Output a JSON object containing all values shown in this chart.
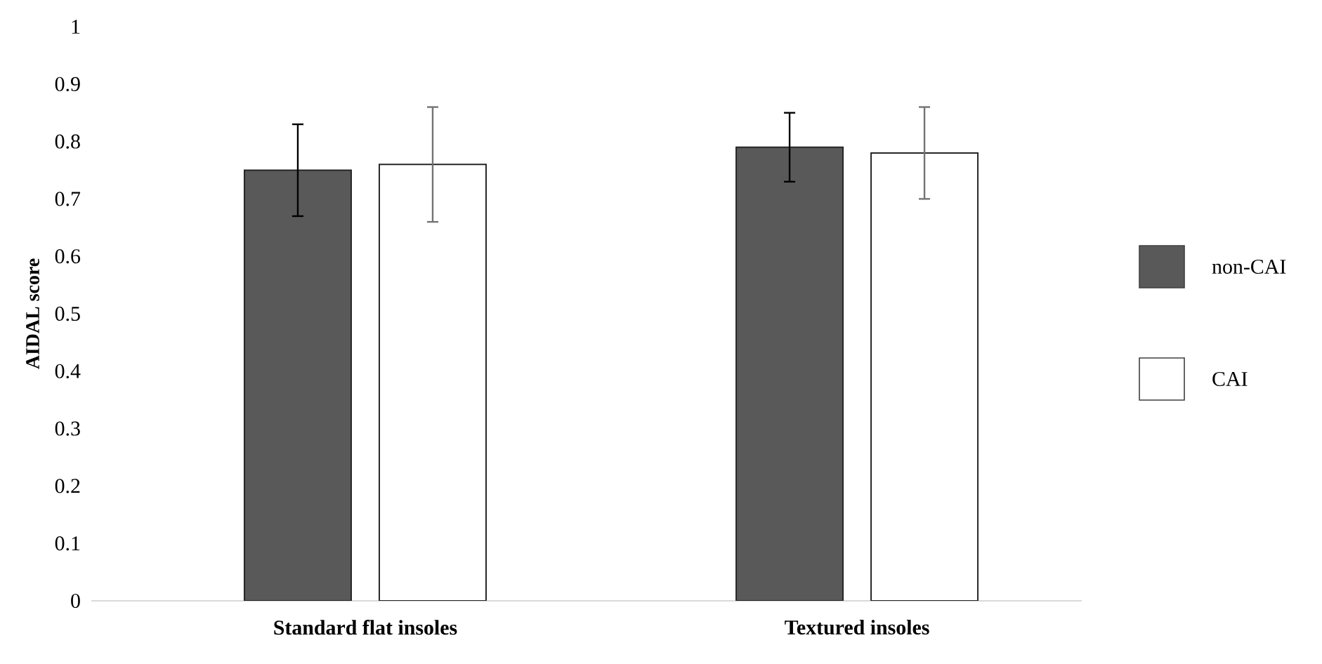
{
  "chart_data": {
    "type": "bar",
    "ylabel": "AIDAL score",
    "categories": [
      "Standard flat insoles",
      "Textured insoles"
    ],
    "series": [
      {
        "name": "non-CAI",
        "color": "#595959",
        "values": [
          0.75,
          0.79
        ],
        "errors": [
          0.08,
          0.06
        ]
      },
      {
        "name": "CAI",
        "color": "#ffffff",
        "values": [
          0.76,
          0.78
        ],
        "errors": [
          0.1,
          0.08
        ]
      }
    ],
    "ylim": [
      0,
      1
    ],
    "yticks": [
      0,
      0.1,
      0.2,
      0.3,
      0.4,
      0.5,
      0.6,
      0.7,
      0.8,
      0.9,
      1
    ],
    "grid": false,
    "legend": "right"
  }
}
